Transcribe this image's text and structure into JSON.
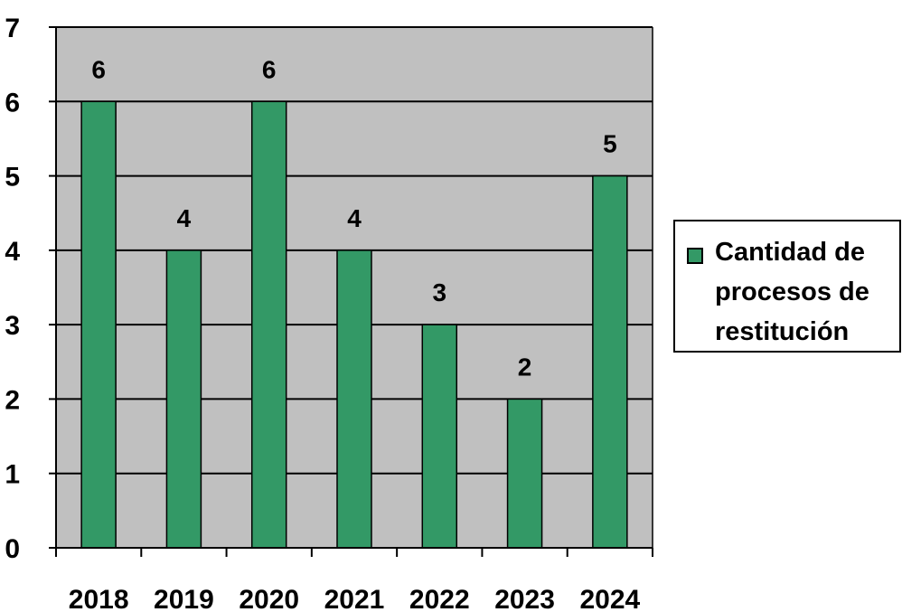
{
  "colors": {
    "plot_background": "#c0c0c0",
    "bar_fill": "#339966",
    "bar_stroke": "#000000",
    "gridline": "#000000"
  },
  "chart_data": {
    "type": "bar",
    "title": "",
    "xlabel": "",
    "ylabel": "",
    "categories": [
      "2018",
      "2019",
      "2020",
      "2021",
      "2022",
      "2023",
      "2024"
    ],
    "series": [
      {
        "name": "Cantidad de procesos de restitución",
        "values": [
          6,
          4,
          6,
          4,
          3,
          2,
          5
        ]
      }
    ],
    "ylim": [
      0,
      7
    ],
    "yticks": [
      0,
      1,
      2,
      3,
      4,
      5,
      6,
      7
    ],
    "grid": true,
    "data_labels": true,
    "legend": {
      "position": "right",
      "entries": [
        "Cantidad de procesos de restitución"
      ]
    }
  }
}
